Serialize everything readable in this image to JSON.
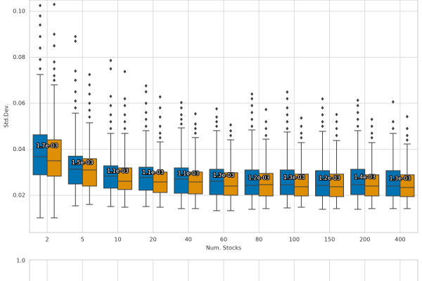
{
  "chart_data": [
    {
      "type": "box",
      "ylabel": "Std.Dev.",
      "xlabel": "Num. Stocks",
      "categories": [
        "2",
        "5",
        "10",
        "20",
        "40",
        "60",
        "80",
        "100",
        "150",
        "200",
        "400"
      ],
      "ylim": [
        0.0038,
        0.1049
      ],
      "yticks": [
        0.02,
        0.04,
        0.06,
        0.08,
        {
          "value": 0.1,
          "label": "0.10"
        }
      ],
      "grid": true,
      "annotations": [
        "1.7e-03",
        "1.5e-03",
        "1.1e-03",
        "1.1e-03",
        "1.1e-03",
        "1.3e-03",
        "1.2e-03",
        "1.3e-03",
        "1.2e-03",
        "1.4e-03",
        "1.3e-03"
      ],
      "series": [
        {
          "color": "#0173b2",
          "boxes": [
            {
              "low": 0.0102,
              "q1": 0.0289,
              "median": 0.0368,
              "q3": 0.0463,
              "high": 0.0725,
              "outliers": [
                0.075,
                0.079,
                0.084,
                0.089,
                0.094,
                0.098,
                0.1025
              ]
            },
            {
              "low": 0.0154,
              "q1": 0.0249,
              "median": 0.0313,
              "q3": 0.037,
              "high": 0.0557,
              "outliers": [
                0.058,
                0.061,
                0.065,
                0.07,
                0.074,
                0.087,
                0.089
              ]
            },
            {
              "low": 0.0151,
              "q1": 0.0231,
              "median": 0.0283,
              "q3": 0.0328,
              "high": 0.0469,
              "outliers": [
                0.049,
                0.052,
                0.055,
                0.059,
                0.063,
                0.075,
                0.0786
              ]
            },
            {
              "low": 0.0151,
              "q1": 0.0222,
              "median": 0.0277,
              "q3": 0.0322,
              "high": 0.0481,
              "outliers": [
                0.05,
                0.053,
                0.056,
                0.06,
                0.065,
                0.0676
              ]
            },
            {
              "low": 0.0142,
              "q1": 0.0209,
              "median": 0.027,
              "q3": 0.0319,
              "high": 0.0493,
              "outliers": [
                0.051,
                0.053,
                0.055,
                0.058,
                0.0603
              ]
            },
            {
              "low": 0.0133,
              "q1": 0.0203,
              "median": 0.0261,
              "q3": 0.0313,
              "high": 0.0481,
              "outliers": [
                0.05,
                0.052,
                0.054,
                0.0576
              ]
            },
            {
              "low": 0.0139,
              "q1": 0.0203,
              "median": 0.0243,
              "q3": 0.031,
              "high": 0.0484,
              "outliers": [
                0.05,
                0.053,
                0.056,
                0.059,
                0.062,
                0.064
              ]
            },
            {
              "low": 0.0145,
              "q1": 0.0203,
              "median": 0.0246,
              "q3": 0.031,
              "high": 0.0475,
              "outliers": [
                0.049,
                0.052,
                0.055,
                0.058,
                0.062,
                0.0649
              ]
            },
            {
              "low": 0.0139,
              "q1": 0.0197,
              "median": 0.0243,
              "q3": 0.0307,
              "high": 0.0478,
              "outliers": [
                0.05,
                0.052,
                0.055,
                0.058,
                0.0619
              ]
            },
            {
              "low": 0.0139,
              "q1": 0.0203,
              "median": 0.0246,
              "q3": 0.0313,
              "high": 0.0481,
              "outliers": [
                0.05,
                0.053,
                0.056,
                0.059,
                0.0613
              ]
            },
            {
              "low": 0.0142,
              "q1": 0.0197,
              "median": 0.024,
              "q3": 0.0307,
              "high": 0.0469,
              "outliers": [
                0.049,
                0.052,
                0.0606
              ]
            }
          ]
        },
        {
          "color": "#de8f05",
          "boxes": [
            {
              "low": 0.0102,
              "q1": 0.0283,
              "median": 0.035,
              "q3": 0.0441,
              "high": 0.068,
              "outliers": [
                0.07,
                0.072,
                0.075,
                0.078,
                0.085,
                0.09,
                0.103
              ]
            },
            {
              "low": 0.016,
              "q1": 0.024,
              "median": 0.031,
              "q3": 0.0359,
              "high": 0.0515,
              "outliers": [
                0.054,
                0.057,
                0.06,
                0.064,
                0.068,
                0.0725
              ]
            },
            {
              "low": 0.0148,
              "q1": 0.0225,
              "median": 0.0261,
              "q3": 0.0319,
              "high": 0.0469,
              "outliers": [
                0.049,
                0.052,
                0.055,
                0.059,
                0.062,
                0.0738
              ]
            },
            {
              "low": 0.0148,
              "q1": 0.0212,
              "median": 0.0258,
              "q3": 0.0301,
              "high": 0.0432,
              "outliers": [
                0.045,
                0.047,
                0.05,
                0.054,
                0.058,
                0.0628
              ]
            },
            {
              "low": 0.0142,
              "q1": 0.0206,
              "median": 0.0258,
              "q3": 0.0301,
              "high": 0.0451,
              "outliers": [
                0.047,
                0.049,
                0.051,
                0.0554
              ]
            },
            {
              "low": 0.0133,
              "q1": 0.02,
              "median": 0.024,
              "q3": 0.0298,
              "high": 0.0441,
              "outliers": [
                0.046,
                0.048,
                0.0506
              ]
            },
            {
              "low": 0.0142,
              "q1": 0.0197,
              "median": 0.0246,
              "q3": 0.0295,
              "high": 0.0444,
              "outliers": [
                0.046,
                0.049,
                0.052,
                0.0573
              ]
            },
            {
              "low": 0.0148,
              "q1": 0.0197,
              "median": 0.0237,
              "q3": 0.0292,
              "high": 0.0429,
              "outliers": [
                0.045,
                0.047,
                0.05,
                0.0536
              ]
            },
            {
              "low": 0.0142,
              "q1": 0.0194,
              "median": 0.0237,
              "q3": 0.0292,
              "high": 0.0438,
              "outliers": [
                0.046,
                0.049,
                0.052,
                0.0551
              ]
            },
            {
              "low": 0.0142,
              "q1": 0.0197,
              "median": 0.024,
              "q3": 0.0289,
              "high": 0.0429,
              "outliers": [
                0.045,
                0.047,
                0.05,
                0.053
              ]
            },
            {
              "low": 0.0142,
              "q1": 0.0194,
              "median": 0.0234,
              "q3": 0.0289,
              "high": 0.0423,
              "outliers": [
                0.044,
                0.046,
                0.049,
                0.0542
              ]
            }
          ]
        }
      ]
    },
    {
      "type": "box",
      "yticks": [
        {
          "value": 1,
          "label": "1.0"
        }
      ]
    }
  ]
}
